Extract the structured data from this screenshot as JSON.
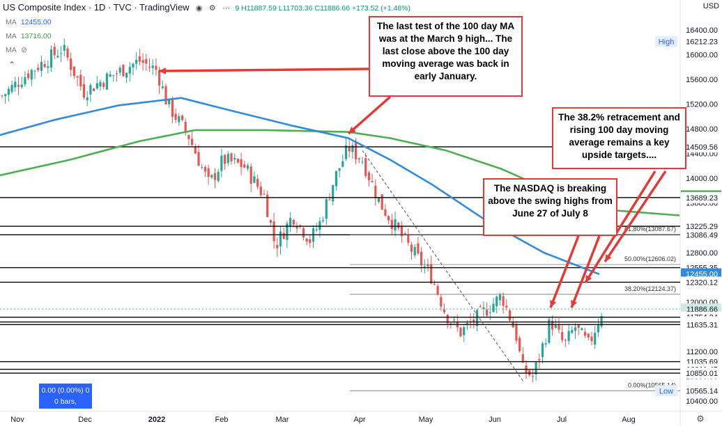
{
  "header": {
    "symbol": "US Composite Index · 1D · TVC · TradingView",
    "ohlc": "9 H11887.59 L11703.36 C11886.66 +173.52 (+1.48%)",
    "currency": "USD"
  },
  "ma_lines": [
    {
      "label": "MA",
      "value": "12455.00"
    },
    {
      "label": "MA",
      "value": "13716.00"
    },
    {
      "label": "MA",
      "value": ""
    }
  ],
  "bars_box": {
    "line1": "0.00 (0.00%) 0",
    "line2": "0 bars,"
  },
  "callouts": {
    "march": "The last test of the 100 day MA was at the March 9 high... The last close above the 100 day moving average  was back in early January.",
    "retracement": "The 38.2% retracement and rising 100 day moving average remains a key upside targets....",
    "nasdaq": "The NASDAQ is breaking above the swing highs from June 27 of July 8"
  },
  "colors": {
    "up": "#26a69a",
    "down": "#ef5350",
    "ma100": "#2e8bdf",
    "ma200": "#4caf50",
    "annotation": "#e53935",
    "high_low_tag": "#e3effd"
  },
  "chart_data": {
    "type": "candlestick",
    "title": "US Composite Index",
    "timeframe": "1D",
    "ylim": [
      10300,
      16700
    ],
    "x_labels": [
      "Nov",
      "Dec",
      "2022",
      "Feb",
      "Mar",
      "Apr",
      "May",
      "Jun",
      "Jul",
      "Aug"
    ],
    "y_ticks": [
      16400,
      16000,
      15600,
      15200,
      14800,
      14400,
      14000,
      13600,
      13200,
      12800,
      12400,
      12000,
      11600,
      11200,
      10800,
      10400
    ],
    "horizontal_levels": [
      14509.56,
      13689.23,
      13225.29,
      13086.49,
      12555.35,
      12320.12,
      11754.24,
      11677.49,
      11635.31,
      11035.69,
      10911.45,
      10850.01
    ],
    "price_tags": [
      {
        "label": "High",
        "value": 16212.23
      },
      {
        "label": "",
        "value": 14509.56
      },
      {
        "label": "",
        "value": 13716.0
      },
      {
        "label": "",
        "value": 13689.23
      },
      {
        "label": "",
        "value": 13225.29
      },
      {
        "label": "",
        "value": 13086.49
      },
      {
        "label": "",
        "value": 12555.35
      },
      {
        "label": "",
        "value": 12455.0
      },
      {
        "label": "",
        "value": 12320.12
      },
      {
        "label": "",
        "value": 11886.66
      },
      {
        "label": "",
        "value": 11754.24
      },
      {
        "label": "",
        "value": 11677.49
      },
      {
        "label": "",
        "value": 11635.31
      },
      {
        "label": "",
        "value": 11035.69
      },
      {
        "label": "",
        "value": 10911.45
      },
      {
        "label": "",
        "value": 10850.01
      },
      {
        "label": "Low",
        "value": 10565.14
      }
    ],
    "fib_levels": [
      {
        "label": "61.80%(13087.67)",
        "value": 13087.67
      },
      {
        "label": "50.00%(12606.02)",
        "value": 12606.02
      },
      {
        "label": "38.20%(12124.37)",
        "value": 12124.37
      },
      {
        "label": "0.00%(10565.14)",
        "value": 10565.14
      }
    ],
    "last_close": 11886.66
  }
}
